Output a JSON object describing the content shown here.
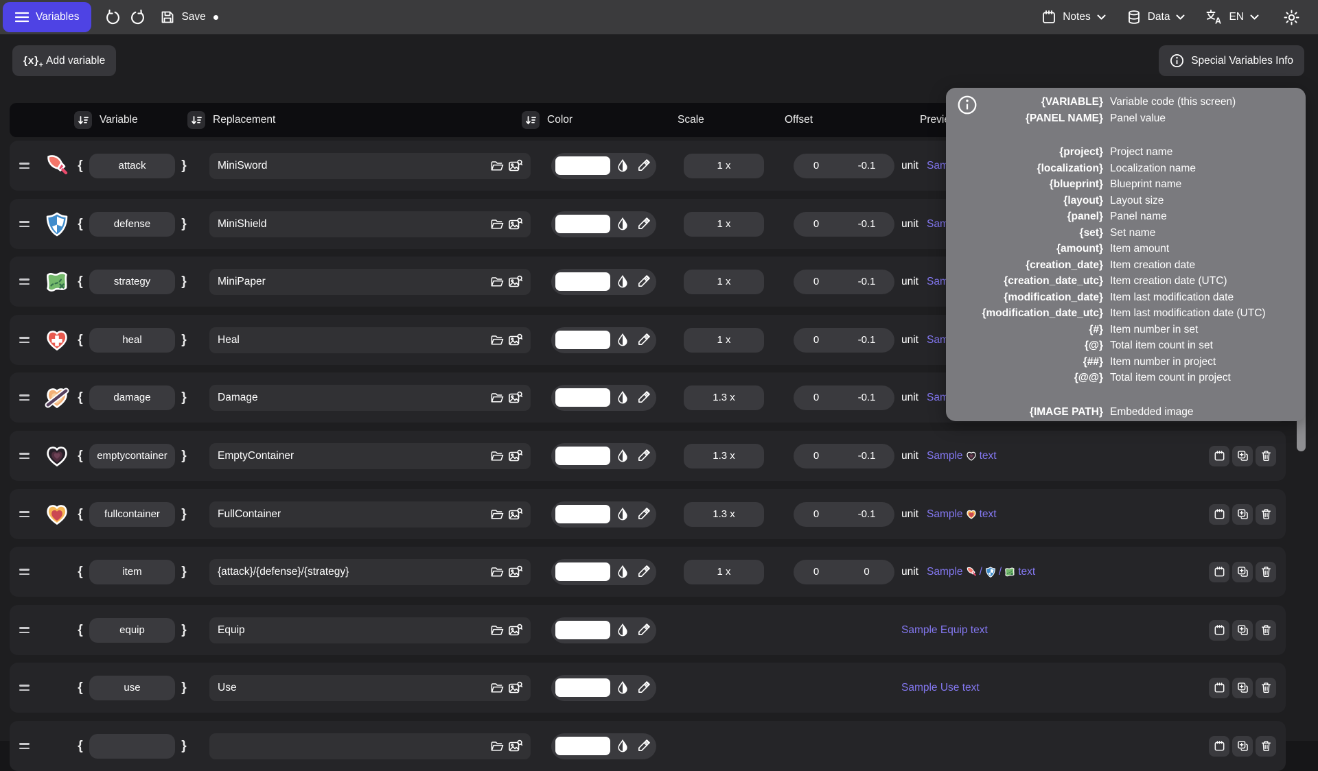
{
  "topbar": {
    "variables_label": "Variables",
    "save_label": "Save",
    "notes_label": "Notes",
    "data_label": "Data",
    "lang_label": "EN"
  },
  "toolbar": {
    "add_variable_label": "Add variable",
    "special_info_label": "Special Variables Info"
  },
  "colors": {
    "accent": "#4e43e4",
    "link": "#8478f2",
    "default_swatch": "#ffffff"
  },
  "table": {
    "headers": [
      {
        "label": "Variable",
        "sortable": true
      },
      {
        "label": "Replacement",
        "sortable": true
      },
      {
        "label": "Color",
        "sortable": true
      },
      {
        "label": "Scale",
        "sortable": false
      },
      {
        "label": "Offset",
        "sortable": false
      },
      {
        "label": "Preview",
        "sortable": false
      }
    ],
    "rows": [
      {
        "icon": "sword",
        "variable": "attack",
        "replacement": "MiniSword",
        "color": "#ffffff",
        "scale": "1 x",
        "offset": [
          "0",
          "-0.1"
        ],
        "unit": "unit",
        "sample": [
          [
            "text",
            "Sample"
          ]
        ],
        "actions": true
      },
      {
        "icon": "shield",
        "variable": "defense",
        "replacement": "MiniShield",
        "color": "#ffffff",
        "scale": "1 x",
        "offset": [
          "0",
          "-0.1"
        ],
        "unit": "unit",
        "sample": [
          [
            "text",
            "Sample"
          ]
        ],
        "actions": true
      },
      {
        "icon": "map",
        "variable": "strategy",
        "replacement": "MiniPaper",
        "color": "#ffffff",
        "scale": "1 x",
        "offset": [
          "0",
          "-0.1"
        ],
        "unit": "unit",
        "sample": [
          [
            "text",
            "Sample"
          ]
        ],
        "actions": true
      },
      {
        "icon": "heart-cross",
        "variable": "heal",
        "replacement": "Heal",
        "color": "#ffffff",
        "scale": "1 x",
        "offset": [
          "0",
          "-0.1"
        ],
        "unit": "unit",
        "sample": [
          [
            "text",
            "Sample"
          ]
        ],
        "actions": true
      },
      {
        "icon": "heart-slash",
        "variable": "damage",
        "replacement": "Damage",
        "color": "#ffffff",
        "scale": "1.3 x",
        "offset": [
          "0",
          "-0.1"
        ],
        "unit": "unit",
        "sample": [
          [
            "text",
            "Sample"
          ]
        ],
        "actions": true
      },
      {
        "icon": "heart-dark",
        "variable": "emptycontainer",
        "replacement": "EmptyContainer",
        "color": "#ffffff",
        "scale": "1.3 x",
        "offset": [
          "0",
          "-0.1"
        ],
        "unit": "unit",
        "sample": [
          [
            "text",
            "Sample"
          ],
          [
            "icon",
            "heart-dark"
          ],
          [
            "text",
            "text"
          ]
        ],
        "actions": true
      },
      {
        "icon": "heart-full",
        "variable": "fullcontainer",
        "replacement": "FullContainer",
        "color": "#ffffff",
        "scale": "1.3 x",
        "offset": [
          "0",
          "-0.1"
        ],
        "unit": "unit",
        "sample": [
          [
            "text",
            "Sample"
          ],
          [
            "icon",
            "heart-full"
          ],
          [
            "text",
            "text"
          ]
        ],
        "actions": true
      },
      {
        "icon": null,
        "variable": "item",
        "replacement": "{attack}/{defense}/{strategy}",
        "color": "#ffffff",
        "scale": "1 x",
        "offset": [
          "0",
          "0"
        ],
        "unit": "unit",
        "sample": [
          [
            "text",
            "Sample"
          ],
          [
            "icon",
            "sword"
          ],
          [
            "text",
            "/"
          ],
          [
            "icon",
            "shield"
          ],
          [
            "text",
            "/"
          ],
          [
            "icon",
            "map"
          ],
          [
            "text",
            "text"
          ]
        ],
        "actions": true
      },
      {
        "icon": null,
        "variable": "equip",
        "replacement": "Equip",
        "color": "#ffffff",
        "scale": null,
        "offset": null,
        "unit": null,
        "sample": [
          [
            "text",
            "Sample Equip text"
          ]
        ],
        "actions": true
      },
      {
        "icon": null,
        "variable": "use",
        "replacement": "Use",
        "color": "#ffffff",
        "scale": null,
        "offset": null,
        "unit": null,
        "sample": [
          [
            "text",
            "Sample Use text"
          ]
        ],
        "actions": true
      },
      {
        "icon": null,
        "variable": "",
        "replacement": "",
        "color": "#ffffff",
        "scale": null,
        "offset": null,
        "unit": null,
        "sample": [],
        "actions": true
      }
    ]
  },
  "overlay": {
    "groups": [
      [
        {
          "code": "{VARIABLE}",
          "desc": "Variable code (this screen)"
        },
        {
          "code": "{PANEL NAME}",
          "desc": "Panel value"
        }
      ],
      [
        {
          "code": "{project}",
          "desc": "Project name"
        },
        {
          "code": "{localization}",
          "desc": "Localization name"
        },
        {
          "code": "{blueprint}",
          "desc": "Blueprint name"
        },
        {
          "code": "{layout}",
          "desc": "Layout size"
        },
        {
          "code": "{panel}",
          "desc": "Panel name"
        },
        {
          "code": "{set}",
          "desc": "Set name"
        },
        {
          "code": "{amount}",
          "desc": "Item amount"
        },
        {
          "code": "{creation_date}",
          "desc": "Item creation date"
        },
        {
          "code": "{creation_date_utc}",
          "desc": "Item creation date (UTC)"
        },
        {
          "code": "{modification_date}",
          "desc": "Item last modification date"
        },
        {
          "code": "{modification_date_utc}",
          "desc": "Item last modification date (UTC)"
        },
        {
          "code": "{#}",
          "desc": "Item number in set"
        },
        {
          "code": "{@}",
          "desc": "Total item count in set"
        },
        {
          "code": "{##}",
          "desc": "Item number in project"
        },
        {
          "code": "{@@}",
          "desc": "Total item count in project"
        }
      ],
      [
        {
          "code": "{IMAGE PATH}",
          "desc": "Embedded image"
        }
      ]
    ]
  }
}
